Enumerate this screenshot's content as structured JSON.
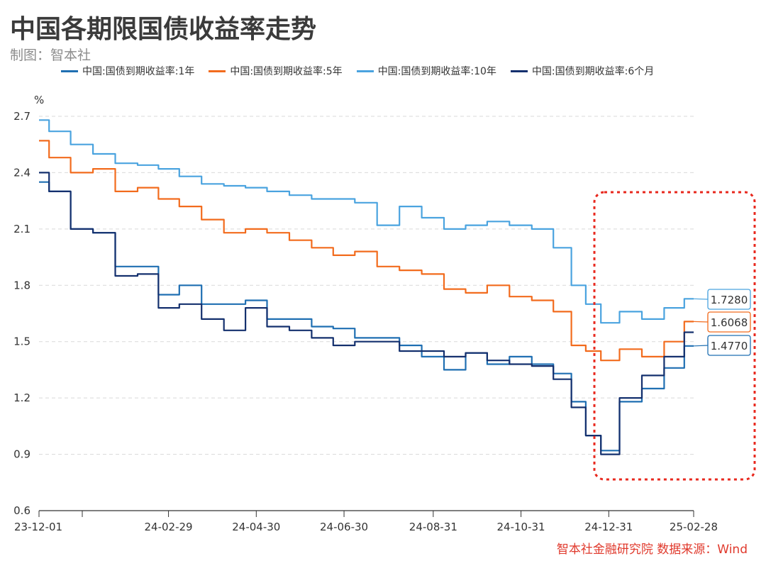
{
  "title": "中国各期限国债收益率走势",
  "subtitle": "制图：智本社",
  "source": "智本社金融研究院  数据来源：Wind",
  "colors": {
    "y1": "#1f6fb2",
    "y5": "#f26b1d",
    "y10": "#4aa3df",
    "m6": "#14306e",
    "highlight": "#e8281e"
  },
  "chart_data": {
    "type": "line",
    "ylabel": "%",
    "ylim": [
      0.6,
      2.7
    ],
    "yticks": [
      "0.6",
      "0.9",
      "1.2",
      "1.5",
      "1.8",
      "2.1",
      "2.4",
      "2.7"
    ],
    "xticks": [
      "23-12-01",
      "24-02-29",
      "24-04-30",
      "24-06-30",
      "24-08-31",
      "24-10-31",
      "24-12-31",
      "25-02-28"
    ],
    "x": [
      "23-12-01",
      "23-12-15",
      "23-12-31",
      "24-01-15",
      "24-01-31",
      "24-02-15",
      "24-02-29",
      "24-03-15",
      "24-03-31",
      "24-04-15",
      "24-04-30",
      "24-05-15",
      "24-05-31",
      "24-06-15",
      "24-06-30",
      "24-07-15",
      "24-07-31",
      "24-08-15",
      "24-08-31",
      "24-09-15",
      "24-09-30",
      "24-10-15",
      "24-10-31",
      "24-11-15",
      "24-11-30",
      "24-12-10",
      "24-12-20",
      "24-12-31",
      "25-01-15",
      "25-01-31",
      "25-02-15",
      "25-02-28"
    ],
    "series": [
      {
        "name": "中国:国债到期收益率:1年",
        "color_key": "y1",
        "values": [
          2.35,
          2.3,
          2.1,
          2.08,
          1.9,
          1.9,
          1.75,
          1.8,
          1.7,
          1.7,
          1.72,
          1.62,
          1.62,
          1.58,
          1.57,
          1.52,
          1.52,
          1.48,
          1.42,
          1.35,
          1.44,
          1.38,
          1.42,
          1.38,
          1.33,
          1.18,
          1.0,
          0.92,
          1.18,
          1.25,
          1.36,
          1.477
        ]
      },
      {
        "name": "中国:国债到期收益率:5年",
        "color_key": "y5",
        "values": [
          2.57,
          2.48,
          2.4,
          2.42,
          2.3,
          2.32,
          2.26,
          2.22,
          2.15,
          2.08,
          2.1,
          2.08,
          2.04,
          2.0,
          1.96,
          1.98,
          1.9,
          1.88,
          1.86,
          1.78,
          1.76,
          1.8,
          1.74,
          1.72,
          1.66,
          1.48,
          1.45,
          1.4,
          1.46,
          1.42,
          1.5,
          1.6068
        ]
      },
      {
        "name": "中国:国债到期收益率:10年",
        "color_key": "y10",
        "values": [
          2.68,
          2.62,
          2.55,
          2.5,
          2.45,
          2.44,
          2.42,
          2.38,
          2.34,
          2.33,
          2.32,
          2.3,
          2.28,
          2.26,
          2.26,
          2.24,
          2.12,
          2.22,
          2.16,
          2.1,
          2.12,
          2.14,
          2.12,
          2.1,
          2.0,
          1.8,
          1.7,
          1.6,
          1.66,
          1.62,
          1.68,
          1.728
        ]
      },
      {
        "name": "中国:国债到期收益率:6个月",
        "color_key": "m6",
        "values": [
          2.4,
          2.3,
          2.1,
          2.08,
          1.85,
          1.86,
          1.68,
          1.7,
          1.62,
          1.56,
          1.68,
          1.58,
          1.56,
          1.52,
          1.48,
          1.5,
          1.5,
          1.45,
          1.45,
          1.42,
          1.44,
          1.4,
          1.38,
          1.37,
          1.3,
          1.15,
          1.0,
          0.9,
          1.2,
          1.32,
          1.42,
          1.55
        ]
      }
    ],
    "end_labels": [
      {
        "text": "1.7280",
        "color_key": "y10"
      },
      {
        "text": "1.6068",
        "color_key": "y5"
      },
      {
        "text": "1.4770",
        "color_key": "y1"
      }
    ],
    "grid": true,
    "legend": "top"
  }
}
